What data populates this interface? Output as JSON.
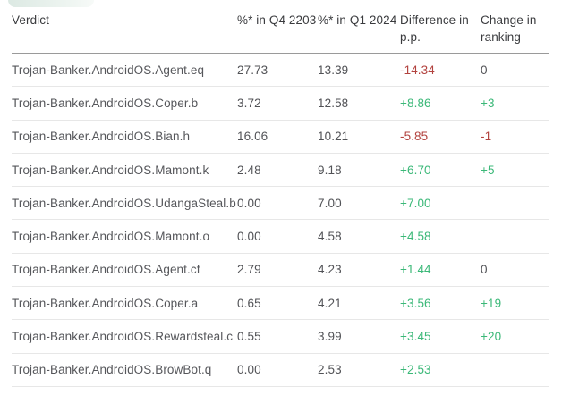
{
  "decor": {
    "top_left_blob_color": "#dce9e3"
  },
  "accent_colors": {
    "positive": "#3bb878",
    "negative": "#b2423e",
    "header_divider": "#9a9a9a",
    "row_divider": "#e7e7e7"
  },
  "table": {
    "columns": [
      "Verdict",
      "%* in Q4 2203",
      "%* in Q1 2024",
      "Difference in p.p.",
      "Change in ranking"
    ],
    "rows": [
      {
        "verdict": "Trojan-Banker.AndroidOS.Agent.eq",
        "q4": "27.73",
        "q1": "13.39",
        "diff": "-14.34",
        "rank": "0"
      },
      {
        "verdict": "Trojan-Banker.AndroidOS.Coper.b",
        "q4": "3.72",
        "q1": "12.58",
        "diff": "+8.86",
        "rank": "+3"
      },
      {
        "verdict": "Trojan-Banker.AndroidOS.Bian.h",
        "q4": "16.06",
        "q1": "10.21",
        "diff": "-5.85",
        "rank": "-1"
      },
      {
        "verdict": "Trojan-Banker.AndroidOS.Mamont.k",
        "q4": "2.48",
        "q1": "9.18",
        "diff": "+6.70",
        "rank": "+5"
      },
      {
        "verdict": "Trojan-Banker.AndroidOS.UdangaSteal.b",
        "q4": "0.00",
        "q1": "7.00",
        "diff": "+7.00",
        "rank": ""
      },
      {
        "verdict": "Trojan-Banker.AndroidOS.Mamont.o",
        "q4": "0.00",
        "q1": "4.58",
        "diff": "+4.58",
        "rank": ""
      },
      {
        "verdict": "Trojan-Banker.AndroidOS.Agent.cf",
        "q4": "2.79",
        "q1": "4.23",
        "diff": "+1.44",
        "rank": "0"
      },
      {
        "verdict": "Trojan-Banker.AndroidOS.Coper.a",
        "q4": "0.65",
        "q1": "4.21",
        "diff": "+3.56",
        "rank": "+19"
      },
      {
        "verdict": "Trojan-Banker.AndroidOS.Rewardsteal.c",
        "q4": "0.55",
        "q1": "3.99",
        "diff": "+3.45",
        "rank": "+20"
      },
      {
        "verdict": "Trojan-Banker.AndroidOS.BrowBot.q",
        "q4": "0.00",
        "q1": "2.53",
        "diff": "+2.53",
        "rank": ""
      }
    ]
  }
}
